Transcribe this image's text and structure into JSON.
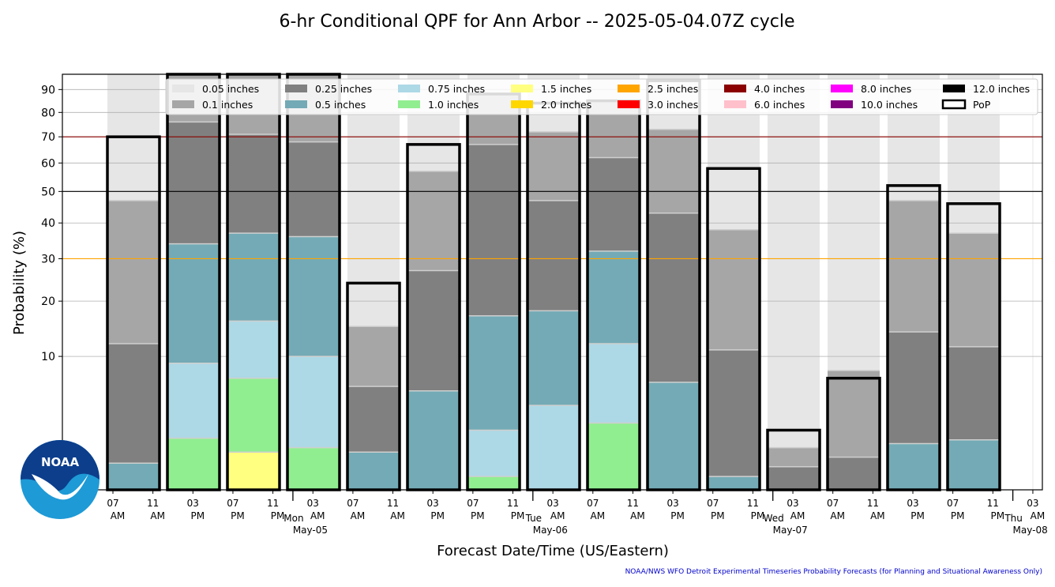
{
  "chart_data": {
    "type": "bar",
    "title": "6-hr Conditional QPF for Ann Arbor -- 2025-05-04.07Z cycle",
    "xlabel": "Forecast Date/Time (US/Eastern)",
    "ylabel": "Probability (%)",
    "y_scale": "sqrt",
    "ylim": [
      0,
      97
    ],
    "y_ticks": [
      10,
      20,
      30,
      40,
      50,
      60,
      70,
      80,
      90
    ],
    "grid": true,
    "legend_position": "top",
    "reference_lines": [
      {
        "value": 70,
        "color": "#8b0000"
      },
      {
        "value": 50,
        "color": "#000000"
      },
      {
        "value": 30,
        "color": "#ffa500"
      }
    ],
    "x_ticks": [
      {
        "hour": "07",
        "ampm": "AM"
      },
      {
        "hour": "11",
        "ampm": "AM"
      },
      {
        "hour": "03",
        "ampm": "PM"
      },
      {
        "hour": "07",
        "ampm": "PM"
      },
      {
        "hour": "11",
        "ampm": "PM"
      },
      {
        "hour": "03",
        "ampm": "AM"
      },
      {
        "hour": "07",
        "ampm": "AM"
      },
      {
        "hour": "11",
        "ampm": "AM"
      },
      {
        "hour": "03",
        "ampm": "PM"
      },
      {
        "hour": "07",
        "ampm": "PM"
      },
      {
        "hour": "11",
        "ampm": "PM"
      },
      {
        "hour": "03",
        "ampm": "AM"
      },
      {
        "hour": "07",
        "ampm": "AM"
      },
      {
        "hour": "11",
        "ampm": "AM"
      },
      {
        "hour": "03",
        "ampm": "PM"
      },
      {
        "hour": "07",
        "ampm": "PM"
      },
      {
        "hour": "11",
        "ampm": "PM"
      },
      {
        "hour": "03",
        "ampm": "AM"
      },
      {
        "hour": "07",
        "ampm": "AM"
      },
      {
        "hour": "11",
        "ampm": "AM"
      },
      {
        "hour": "03",
        "ampm": "PM"
      },
      {
        "hour": "07",
        "ampm": "PM"
      },
      {
        "hour": "11",
        "ampm": "PM"
      },
      {
        "hour": "03",
        "ampm": "AM"
      }
    ],
    "day_labels": [
      {
        "dow": "Mon",
        "date": "May-05",
        "after_tick": 4
      },
      {
        "dow": "Tue",
        "date": "May-06",
        "after_tick": 10
      },
      {
        "dow": "Wed",
        "date": "May-07",
        "after_tick": 16
      },
      {
        "dow": "Thu",
        "date": "May-08",
        "after_tick": 22
      }
    ],
    "thresholds": [
      {
        "label": "0.05 inches",
        "color": "#e6e6e6"
      },
      {
        "label": "0.1 inches",
        "color": "#a6a6a6"
      },
      {
        "label": "0.25 inches",
        "color": "#808080"
      },
      {
        "label": "0.5 inches",
        "color": "#73aab5"
      },
      {
        "label": "0.75 inches",
        "color": "#add8e6"
      },
      {
        "label": "1.0 inches",
        "color": "#90ee90"
      },
      {
        "label": "1.5 inches",
        "color": "#ffff80"
      },
      {
        "label": "2.0 inches",
        "color": "#ffd700"
      },
      {
        "label": "2.5 inches",
        "color": "#ffa500"
      },
      {
        "label": "3.0 inches",
        "color": "#ff0000"
      },
      {
        "label": "4.0 inches",
        "color": "#8b0000"
      },
      {
        "label": "6.0 inches",
        "color": "#ffc0cb"
      },
      {
        "label": "8.0 inches",
        "color": "#ff00ff"
      },
      {
        "label": "10.0 inches",
        "color": "#800080"
      },
      {
        "label": "12.0 inches",
        "color": "#000000"
      }
    ],
    "pop_label": "PoP",
    "periods": [
      {
        "pop": 70,
        "values": [
          70,
          47,
          12,
          0.4,
          0,
          0,
          0,
          0
        ]
      },
      {
        "pop": 97,
        "values": [
          97,
          97,
          76,
          34,
          9,
          1.5,
          0,
          0
        ]
      },
      {
        "pop": 97,
        "values": [
          97,
          97,
          71,
          37,
          16,
          7,
          0.8,
          0
        ]
      },
      {
        "pop": 97,
        "values": [
          97,
          97,
          68,
          36,
          10,
          1,
          0,
          0
        ]
      },
      {
        "pop": 24,
        "values": [
          24,
          15,
          6,
          0.8,
          0,
          0,
          0,
          0
        ]
      },
      {
        "pop": 67,
        "values": [
          67,
          57,
          27,
          5.5,
          0,
          0,
          0,
          0
        ]
      },
      {
        "pop": 88,
        "values": [
          88,
          88,
          67,
          17,
          2,
          0.1,
          0,
          0
        ]
      },
      {
        "pop": 84,
        "values": [
          84,
          72,
          47,
          18,
          4,
          0,
          0,
          0
        ]
      },
      {
        "pop": 85,
        "values": [
          85,
          85,
          62,
          32,
          12,
          2.5,
          0,
          0
        ]
      },
      {
        "pop": 94,
        "values": [
          94,
          73,
          43,
          6.5,
          0,
          0,
          0,
          0
        ]
      },
      {
        "pop": 58,
        "values": [
          58,
          38,
          11,
          0.1,
          0,
          0,
          0,
          0
        ]
      },
      {
        "pop": 2,
        "values": [
          2,
          1,
          0.3,
          0,
          0,
          0,
          0,
          0
        ]
      },
      {
        "pop": 7,
        "values": [
          7,
          8,
          0.6,
          0,
          0,
          0,
          0,
          0
        ]
      },
      {
        "pop": 52,
        "values": [
          52,
          47,
          14,
          1.2,
          0,
          0,
          0,
          0
        ]
      },
      {
        "pop": 46,
        "values": [
          46,
          37,
          11.5,
          1.4,
          0,
          0,
          0,
          0
        ]
      }
    ]
  },
  "footer": {
    "credit": "NOAA/NWS WFO Detroit Experimental Timeseries Probability Forecasts (for Planning and Situational Awareness Only)",
    "logo_text": "NOAA"
  }
}
